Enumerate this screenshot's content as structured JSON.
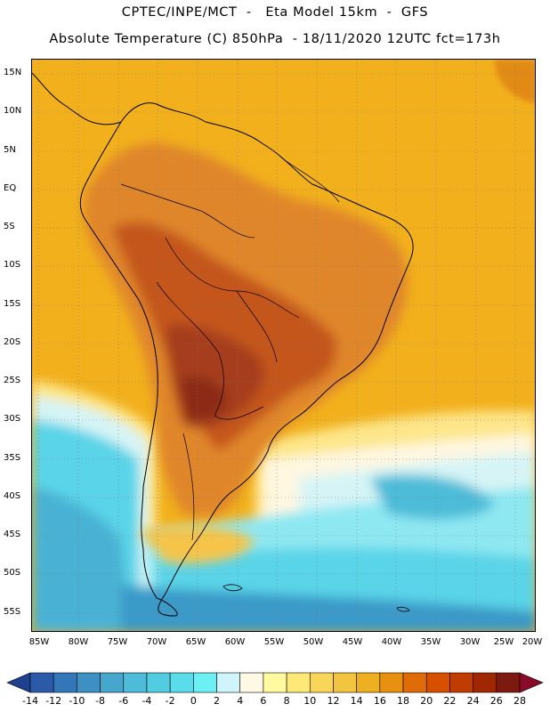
{
  "header": {
    "title_line1": "CPTEC/INPE/MCT  -   Eta Model 15km  -  GFS",
    "title_line2": "Absolute Temperature (C) 850hPa  - 18/11/2020 12UTC fct=173h"
  },
  "axes": {
    "lat_labels": [
      "15N",
      "10N",
      "5N",
      "EQ",
      "5S",
      "10S",
      "15S",
      "20S",
      "25S",
      "30S",
      "35S",
      "40S",
      "45S",
      "50S",
      "55S"
    ],
    "lon_labels": [
      "85W",
      "80W",
      "75W",
      "70W",
      "65W",
      "60W",
      "55W",
      "50W",
      "45W",
      "40W",
      "35W",
      "30W",
      "25W",
      "20W"
    ]
  },
  "colorbar": {
    "labels": [
      "-14",
      "-12",
      "-10",
      "-8",
      "-6",
      "-4",
      "-2",
      "0",
      "2",
      "4",
      "6",
      "8",
      "10",
      "12",
      "14",
      "16",
      "18",
      "20",
      "22",
      "24",
      "26",
      "28"
    ],
    "colors": [
      "#1f3f8f",
      "#2a5aa8",
      "#3278b8",
      "#3c90c4",
      "#47a6cc",
      "#4ebcd8",
      "#52cce0",
      "#5adcea",
      "#6cf0f4",
      "#cff4fa",
      "#fff8e4",
      "#fffaa0",
      "#fde878",
      "#f8d65a",
      "#f2c440",
      "#eeb020",
      "#e89010",
      "#e06c08",
      "#d65000",
      "#c03c00",
      "#a02800",
      "#7c1a10",
      "#8a0a2a"
    ]
  },
  "field": {
    "ocean_north_color": "#f0a810",
    "continent_hot_color": "#d46a1c",
    "continent_core_color": "#a8401e",
    "south_cold_color": "#5ad4e8",
    "far_south_color": "#3a94c6"
  }
}
